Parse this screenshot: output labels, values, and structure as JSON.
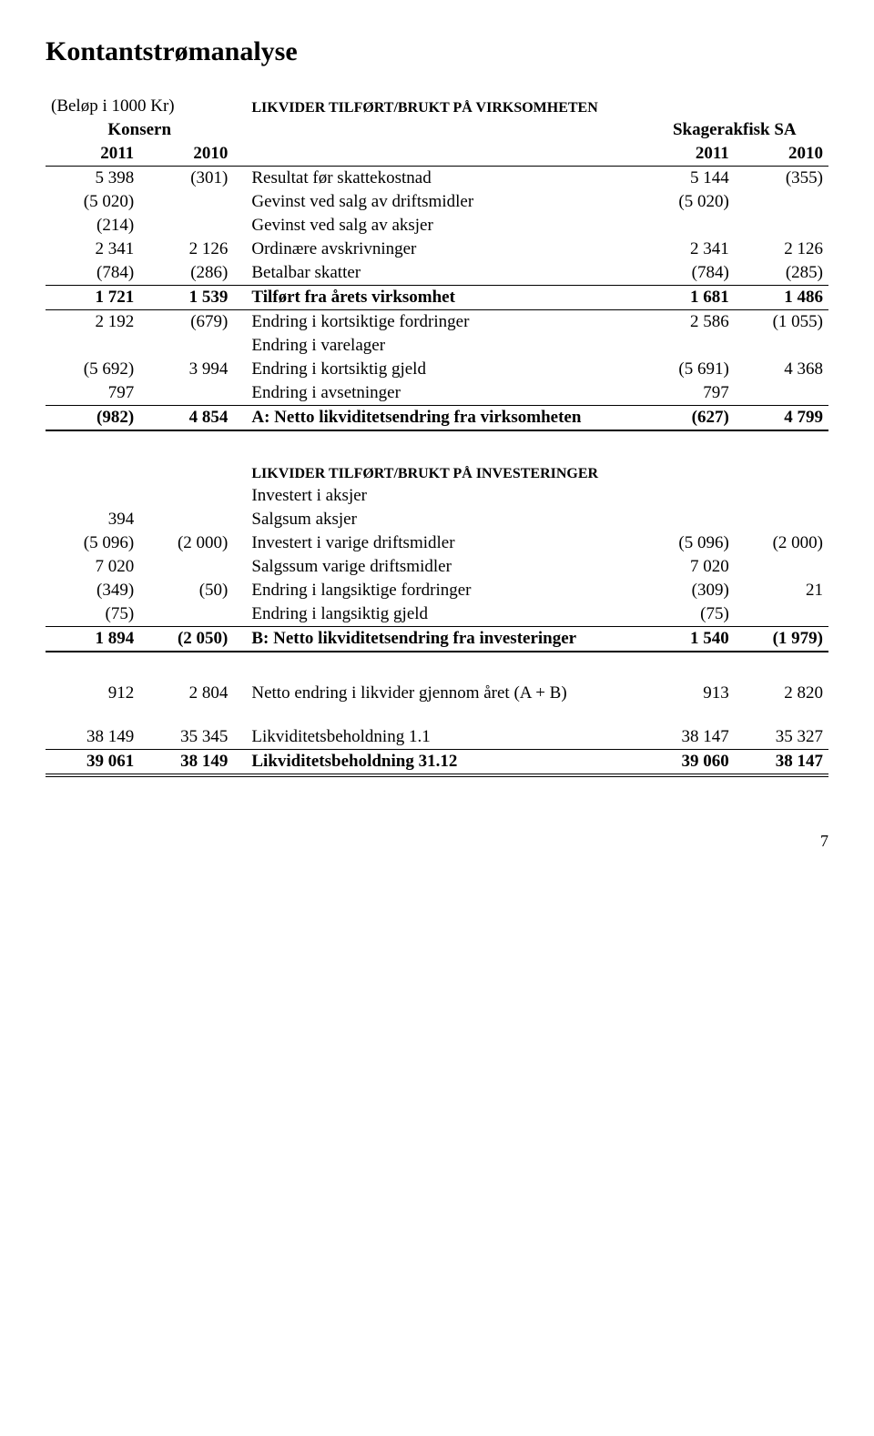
{
  "title": "Kontantstrømanalyse",
  "unit_note": "(Beløp i 1000 Kr)",
  "group_left": "Konsern",
  "group_right": "Skagerakfisk SA",
  "year1": "2011",
  "year2": "2010",
  "sectionA": "LIKVIDER TILFØRT/BRUKT PÅ VIRKSOMHETEN",
  "sectionB": "LIKVIDER TILFØRT/BRUKT PÅ INVESTERINGER",
  "rowsA1": [
    {
      "l1": "5 398",
      "l2": "(301)",
      "label": "Resultat før skattekostnad",
      "r1": "5 144",
      "r2": "(355)"
    },
    {
      "l1": "(5 020)",
      "l2": "",
      "label": "Gevinst ved salg av driftsmidler",
      "r1": "(5 020)",
      "r2": ""
    },
    {
      "l1": "(214)",
      "l2": "",
      "label": "Gevinst ved salg av aksjer",
      "r1": "",
      "r2": ""
    },
    {
      "l1": "2 341",
      "l2": "2 126",
      "label": "Ordinære avskrivninger",
      "r1": "2 341",
      "r2": "2 126"
    },
    {
      "l1": "(784)",
      "l2": "(286)",
      "label": "Betalbar skatter",
      "r1": "(784)",
      "r2": "(285)"
    }
  ],
  "subtotalA1": {
    "l1": "1 721",
    "l2": "1 539",
    "label": "Tilført fra årets virksomhet",
    "r1": "1 681",
    "r2": "1 486"
  },
  "rowsA2": [
    {
      "l1": "2 192",
      "l2": "(679)",
      "label": "Endring i kortsiktige fordringer",
      "r1": "2 586",
      "r2": "(1 055)"
    },
    {
      "l1": "",
      "l2": "",
      "label": "Endring i varelager",
      "r1": "",
      "r2": ""
    },
    {
      "l1": "(5 692)",
      "l2": "3 994",
      "label": "Endring i kortsiktig gjeld",
      "r1": "(5 691)",
      "r2": "4 368"
    },
    {
      "l1": "797",
      "l2": "",
      "label": "Endring i avsetninger",
      "r1": "797",
      "r2": ""
    }
  ],
  "totalA": {
    "l1": "(982)",
    "l2": "4 854",
    "label": "A:  Netto likviditetsendring fra virksomheten",
    "r1": "(627)",
    "r2": "4 799"
  },
  "rowsB": [
    {
      "l1": "",
      "l2": "",
      "label": "Investert i aksjer",
      "r1": "",
      "r2": ""
    },
    {
      "l1": "394",
      "l2": "",
      "label": "Salgsum aksjer",
      "r1": "",
      "r2": ""
    },
    {
      "l1": "(5 096)",
      "l2": "(2 000)",
      "label": "Investert i varige driftsmidler",
      "r1": "(5 096)",
      "r2": "(2 000)"
    },
    {
      "l1": "7 020",
      "l2": "",
      "label": "Salgssum varige driftsmidler",
      "r1": "7 020",
      "r2": ""
    },
    {
      "l1": "(349)",
      "l2": "(50)",
      "label": "Endring i langsiktige fordringer",
      "r1": "(309)",
      "r2": "21"
    },
    {
      "l1": "(75)",
      "l2": "",
      "label": "Endring i langsiktig gjeld",
      "r1": "(75)",
      "r2": ""
    }
  ],
  "totalB": {
    "l1": "1 894",
    "l2": "(2 050)",
    "label": "B:  Netto likviditetsendring fra investeringer",
    "r1": "1 540",
    "r2": "(1 979)"
  },
  "netChange": {
    "l1": "912",
    "l2": "2 804",
    "label": "Netto endring i likvider gjennom året (A + B)",
    "r1": "913",
    "r2": "2 820"
  },
  "cashBegin": {
    "l1": "38 149",
    "l2": "35 345",
    "label": "Likviditetsbeholdning 1.1",
    "r1": "38 147",
    "r2": "35 327"
  },
  "cashEnd": {
    "l1": "39 061",
    "l2": "38 149",
    "label": "Likviditetsbeholdning 31.12",
    "r1": "39 060",
    "r2": "38 147"
  },
  "pageNumber": "7"
}
